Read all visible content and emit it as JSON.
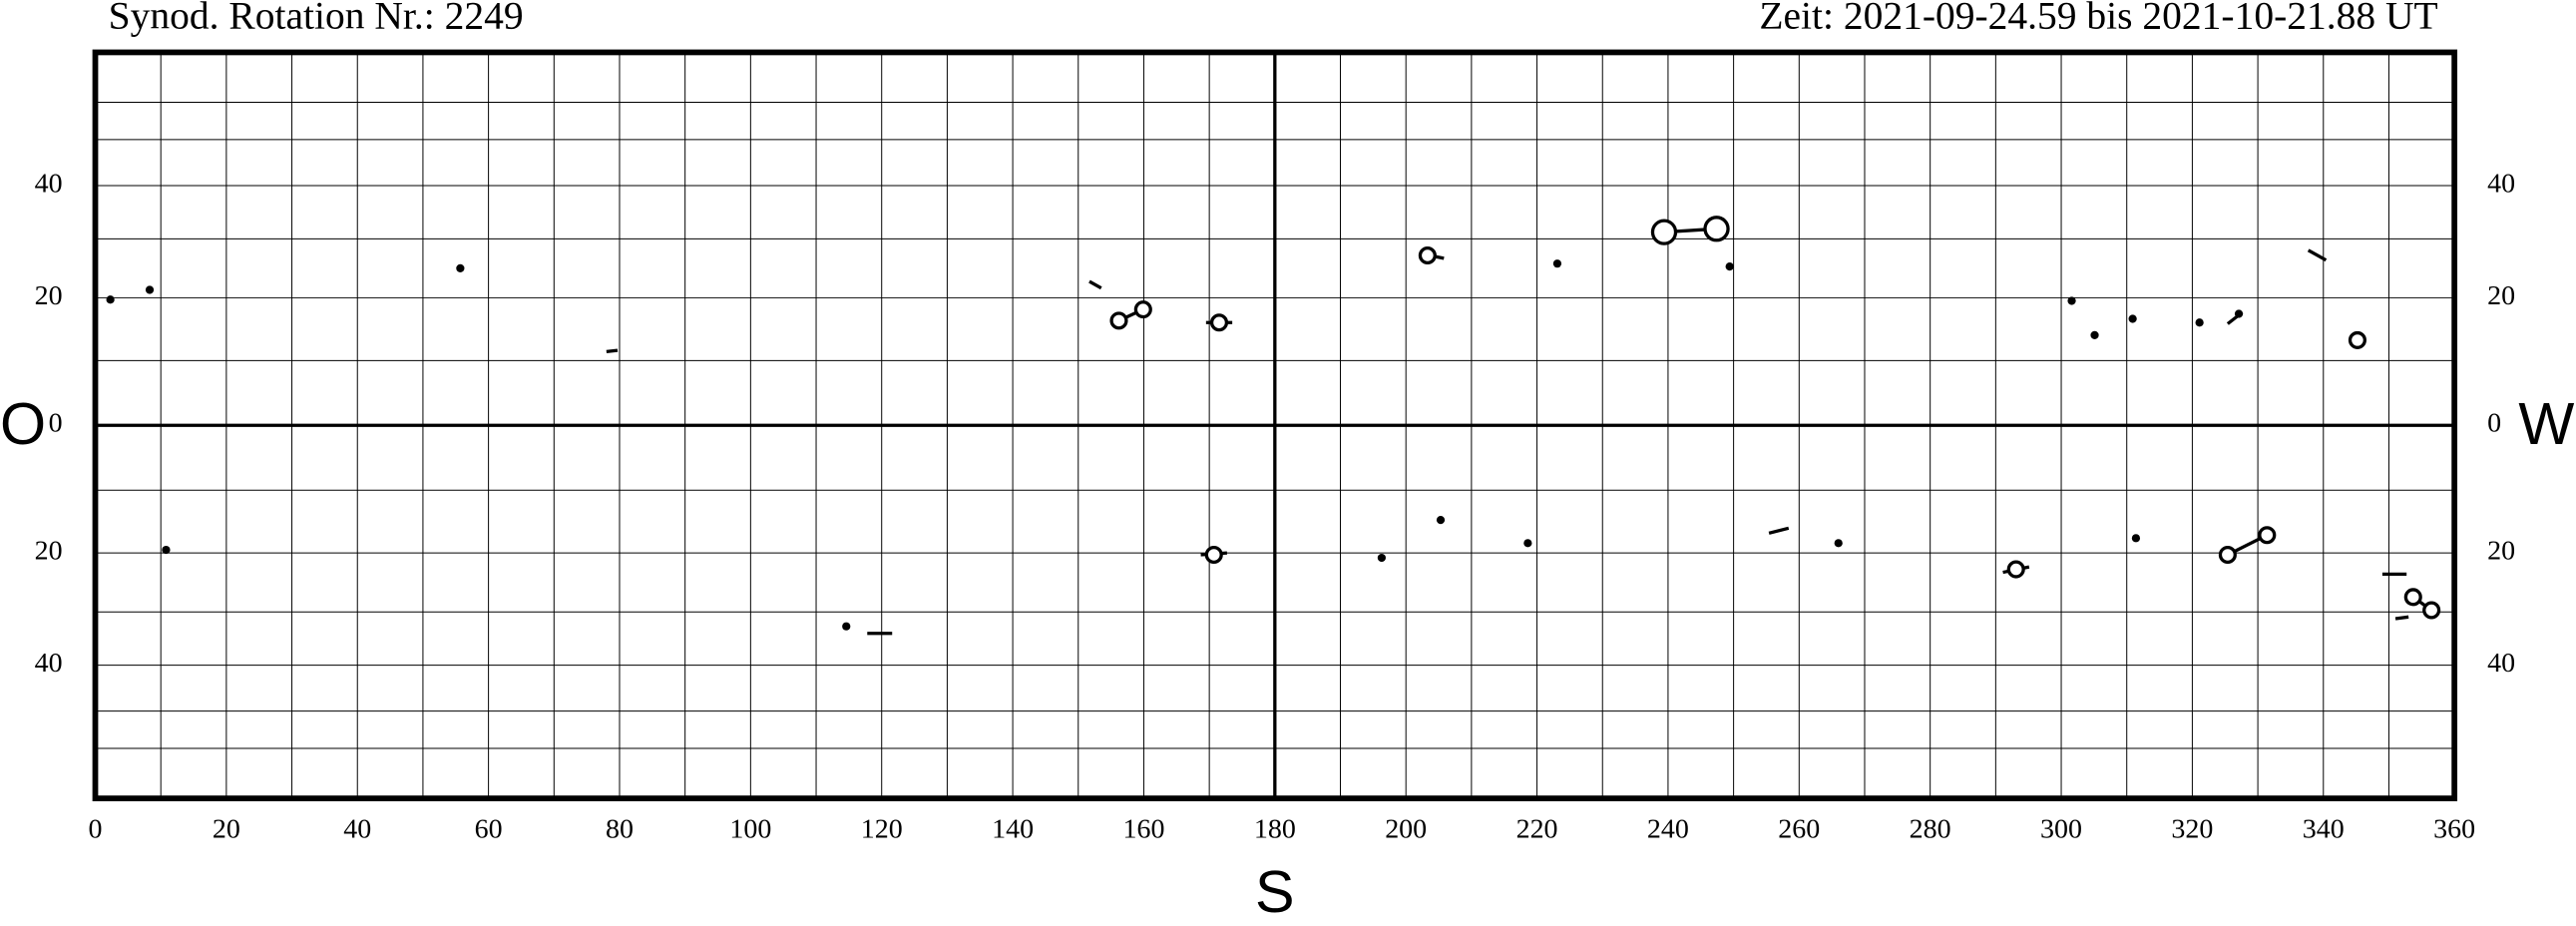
{
  "chart_data": {
    "type": "scatter",
    "title_left": "Synod. Rotation Nr.: 2249",
    "title_right": "Zeit: 2021-09-24.59 bis 2021-10-21.88 UT",
    "label_left": "O",
    "label_right": "W",
    "label_bottom": "S",
    "y_scale": "sine",
    "xlim": [
      0,
      360
    ],
    "ylim": [
      -90,
      90
    ],
    "xticks": [
      0,
      20,
      40,
      60,
      80,
      100,
      120,
      140,
      160,
      180,
      200,
      220,
      240,
      260,
      280,
      300,
      320,
      340,
      360
    ],
    "yticks": [
      {
        "value": -40,
        "label": "40"
      },
      {
        "value": -20,
        "label": "20"
      },
      0,
      20,
      40
    ],
    "xgrid_step": 10,
    "ygrid": [
      -60,
      -50,
      -40,
      -30,
      -20,
      -10,
      10,
      20,
      30,
      40,
      50,
      60
    ],
    "series": [
      {
        "color": "#000000",
        "marker_size": 2.5,
        "x": [
          2.3,
          8.3,
          55.7,
          10.8,
          114.6,
          196.3,
          205.3,
          218.6,
          223.1,
          249.4,
          266.0,
          301.6,
          305.1,
          310.9,
          311.4,
          321.1,
          327.1
        ],
        "values": [
          19.7,
          21.3,
          24.9,
          -19.5,
          -32.6,
          -20.8,
          -14.7,
          -18.4,
          25.7,
          25.2,
          -18.4,
          19.5,
          14.0,
          16.6,
          -17.6,
          16.0,
          17.4
        ]
      },
      {
        "color": "#000000",
        "marker_size": 4.5,
        "x": [
          156.2,
          159.9,
          171.5,
          170.7,
          203.3,
          293.1,
          325.4,
          331.4,
          345.2,
          353.7,
          356.5
        ],
        "values": [
          16.3,
          18.1,
          16.0,
          -20.3,
          27.1,
          -22.7,
          -20.3,
          -17.1,
          13.2,
          -27.4,
          -29.7
        ]
      },
      {
        "color": "#000000",
        "marker_size": 7,
        "x": [
          239.4,
          247.4
        ],
        "values": [
          31.2,
          31.8
        ]
      }
    ],
    "segments": [
      {
        "x": [
          156.2,
          159.9
        ],
        "values": [
          16.3,
          18.1
        ]
      },
      {
        "x": [
          239.4,
          247.4
        ],
        "values": [
          31.2,
          31.8
        ]
      },
      {
        "x": [
          325.4,
          331.4
        ],
        "values": [
          -20.3,
          -17.1
        ]
      },
      {
        "x": [
          353.7,
          356.5
        ],
        "values": [
          -27.4,
          -29.7
        ]
      },
      {
        "x": [
          151.7,
          153.5
        ],
        "values": [
          22.7,
          21.6
        ]
      },
      {
        "x": [
          78.0,
          79.7
        ],
        "values": [
          11.4,
          11.6
        ]
      },
      {
        "x": [
          117.8,
          121.6
        ],
        "values": [
          -33.9,
          -33.9
        ]
      },
      {
        "x": [
          168.7,
          172.7
        ],
        "values": [
          -20.3,
          -20.0
        ]
      },
      {
        "x": [
          169.5,
          173.5
        ],
        "values": [
          16.0,
          16.0
        ]
      },
      {
        "x": [
          202.3,
          205.8
        ],
        "values": [
          27.4,
          26.6
        ]
      },
      {
        "x": [
          291.1,
          295.1
        ],
        "values": [
          -23.2,
          -22.3
        ]
      },
      {
        "x": [
          255.4,
          258.4
        ],
        "values": [
          -16.8,
          -16.0
        ]
      },
      {
        "x": [
          337.7,
          340.4
        ],
        "values": [
          28.0,
          26.3
        ]
      },
      {
        "x": [
          325.4,
          327.6
        ],
        "values": [
          15.8,
          17.6
        ]
      },
      {
        "x": [
          349.0,
          352.7
        ],
        "values": [
          -23.5,
          -23.5
        ]
      },
      {
        "x": [
          351.0,
          353.0
        ],
        "values": [
          -31.2,
          -30.9
        ]
      }
    ]
  }
}
